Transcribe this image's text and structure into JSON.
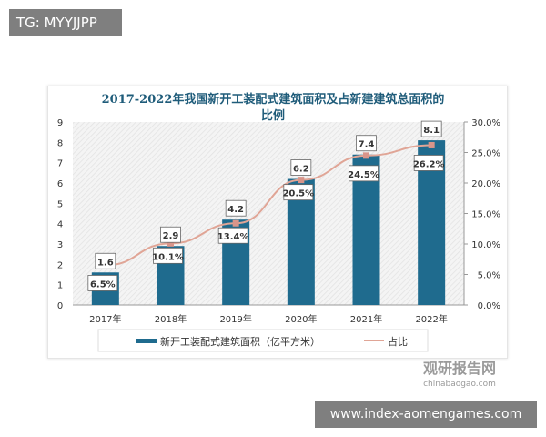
{
  "overlay_tag": "TG: MYYJJPP",
  "overlay_site": "www.index-aomengames.com",
  "watermark": {
    "cn": "观研报告网",
    "en": "chinabaogao.com"
  },
  "colors": {
    "bar": "#1f6b8e",
    "line": "#e0a596",
    "marker": "#d9958a",
    "title": "#1f5c7a"
  },
  "chart_data": {
    "type": "bar",
    "title_line1": "2017-2022年我国新开工装配式建筑面积及占新建建筑总面积的",
    "title_line2": "比例",
    "categories": [
      "2017年",
      "2018年",
      "2019年",
      "2020年",
      "2021年",
      "2022年"
    ],
    "series": [
      {
        "name": "新开工装配式建筑面积（亿平方米）",
        "type": "bar",
        "axis": "left",
        "values": [
          1.6,
          2.9,
          4.2,
          6.2,
          7.4,
          8.1
        ],
        "labels": [
          "1.6",
          "2.9",
          "4.2",
          "6.2",
          "7.4",
          "8.1"
        ]
      },
      {
        "name": "占比",
        "type": "line",
        "axis": "right",
        "values": [
          6.5,
          10.1,
          13.4,
          20.5,
          24.5,
          26.2
        ],
        "labels": [
          "6.5%",
          "10.1%",
          "13.4%",
          "20.5%",
          "24.5%",
          "26.2%"
        ]
      }
    ],
    "left_axis": {
      "ylim": [
        0,
        9
      ],
      "ticks": [
        "0",
        "1",
        "2",
        "3",
        "4",
        "5",
        "6",
        "7",
        "8",
        "9"
      ]
    },
    "right_axis": {
      "ylim": [
        0,
        30
      ],
      "ticks": [
        "0.0%",
        "5.0%",
        "10.0%",
        "15.0%",
        "20.0%",
        "25.0%",
        "30.0%"
      ]
    },
    "legend_position": "bottom",
    "grid": false
  }
}
